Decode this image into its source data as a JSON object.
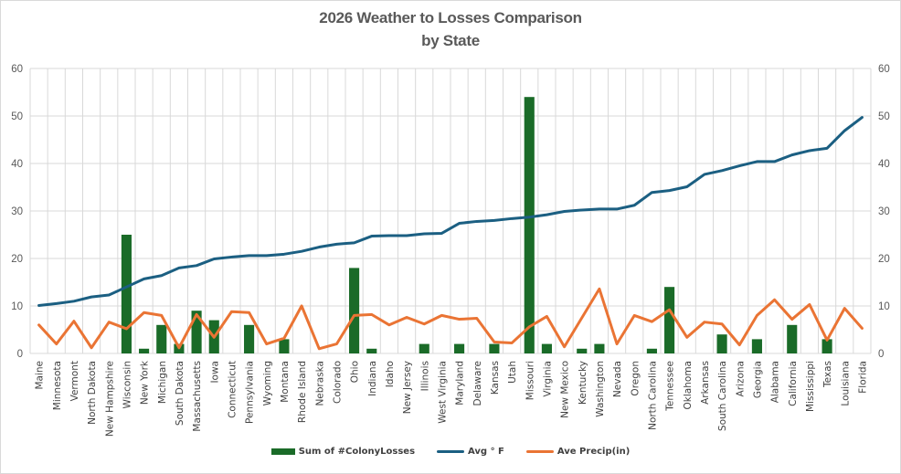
{
  "chart_data": {
    "type": "bar+line",
    "title": "2026 Weather to Losses Comparison",
    "subtitle": "by State",
    "xlabel": "",
    "ylabel": "",
    "ylim": [
      0,
      60
    ],
    "y2lim": [
      0,
      60
    ],
    "yticks": [
      0,
      10,
      20,
      30,
      40,
      50,
      60
    ],
    "grid": true,
    "legend_position": "bottom",
    "categories": [
      "Maine",
      "Minnesota",
      "Vermont",
      "North Dakota",
      "New Hampshire",
      "Wisconsin",
      "New York",
      "Michigan",
      "South Dakota",
      "Massachusetts",
      "Iowa",
      "Connecticut",
      "Pennsylvania",
      "Wyoming",
      "Montana",
      "Rhode Island",
      "Nebraska",
      "Colorado",
      "Ohio",
      "Indiana",
      "Idaho",
      "New Jersey",
      "Illinois",
      "West Virginia",
      "Maryland",
      "Delaware",
      "Kansas",
      "Utah",
      "Missouri",
      "Virginia",
      "New Mexico",
      "Kentucky",
      "Washington",
      "Nevada",
      "Oregon",
      "North Carolina",
      "Tennessee",
      "Oklahoma",
      "Arkansas",
      "South Carolina",
      "Arizona",
      "Georgia",
      "Alabama",
      "California",
      "Mississippi",
      "Texas",
      "Louisiana",
      "Florida"
    ],
    "series": [
      {
        "name": "Sum of #ColonyLosses",
        "type": "bar",
        "color": "#1a6b28",
        "values": [
          0,
          0,
          0,
          0,
          0,
          25,
          1,
          6,
          2,
          9,
          7,
          0,
          6,
          0,
          3,
          0,
          0,
          0,
          18,
          1,
          0,
          0,
          2,
          0,
          2,
          0,
          2,
          0,
          54,
          2,
          0,
          1,
          2,
          0,
          0,
          1,
          14,
          0,
          0,
          4,
          0,
          3,
          0,
          6,
          0,
          3,
          0,
          0
        ]
      },
      {
        "name": "Avg ° F",
        "type": "line",
        "color": "#1b5f82",
        "values": [
          10.1,
          10.5,
          11.0,
          11.9,
          12.3,
          14.0,
          15.7,
          16.4,
          18.0,
          18.5,
          19.9,
          20.3,
          20.6,
          20.6,
          20.9,
          21.5,
          22.4,
          23.0,
          23.3,
          24.7,
          24.8,
          24.8,
          25.2,
          25.3,
          27.4,
          27.8,
          28.0,
          28.4,
          28.7,
          29.2,
          29.9,
          30.2,
          30.4,
          30.4,
          31.2,
          33.9,
          34.3,
          35.1,
          37.7,
          38.5,
          39.5,
          40.4,
          40.4,
          41.8,
          42.7,
          43.2,
          46.9,
          49.7
        ]
      },
      {
        "name": "Ave Precip(in)",
        "type": "line",
        "color": "#ea7434",
        "values": [
          6.0,
          2.0,
          6.8,
          1.2,
          6.6,
          5.2,
          8.6,
          8.0,
          1.2,
          8.2,
          3.4,
          8.8,
          8.6,
          2.0,
          3.2,
          10.0,
          1.0,
          2.0,
          8.0,
          8.2,
          6.0,
          7.6,
          6.2,
          8.0,
          7.2,
          7.4,
          2.4,
          2.2,
          5.6,
          7.8,
          1.4,
          7.5,
          13.6,
          2.0,
          8.0,
          6.7,
          9.2,
          3.4,
          6.6,
          6.2,
          1.8,
          8.0,
          11.3,
          7.2,
          10.3,
          2.8,
          9.5,
          5.3
        ]
      }
    ]
  }
}
